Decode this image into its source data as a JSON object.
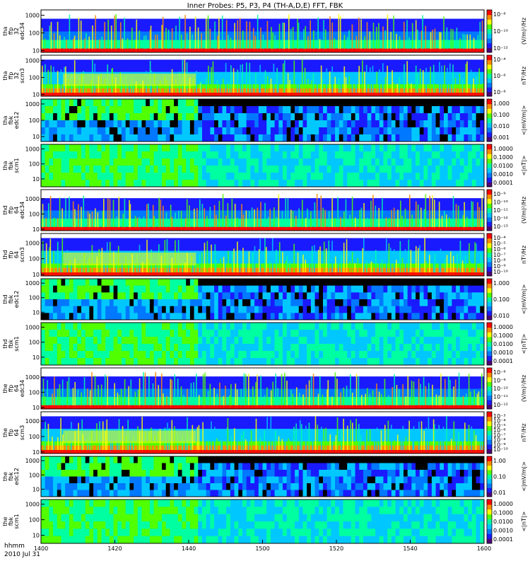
{
  "title": "Inner Probes: P5, P3, P4 (TH-A,D,E) FFT, FBK",
  "colors": {
    "spectrogram": [
      "#4b0078",
      "#1a1aff",
      "#0078ff",
      "#00c8ff",
      "#00ffa0",
      "#50ff00",
      "#ffff00",
      "#ff8c00",
      "#ff0000"
    ],
    "data_gap": "#000000"
  },
  "chart_data": {
    "type": "heatmap",
    "xlabel": "hhmm",
    "date": "2010 Jul 31",
    "x_ticks": [
      "1400",
      "1420",
      "1440",
      "1500",
      "1520",
      "1540",
      "1600"
    ],
    "xlim": [
      "14:00",
      "16:00"
    ],
    "panels": [
      {
        "id": "tha-ffp-32-edc34",
        "ylabel": [
          "tha",
          "ffp",
          "32",
          "edc34"
        ],
        "yscale": "log",
        "ylim": [
          8,
          2000
        ],
        "y_ticks": [
          "1000",
          "100",
          "10"
        ],
        "cb_ticks": [
          "10⁻⁸",
          "10⁻¹⁰",
          "10⁻¹²"
        ],
        "cb_unit": "(V/m)²/Hz"
      },
      {
        "id": "tha-ffp-32-scm3",
        "ylabel": [
          "tha",
          "ffp",
          "32",
          "scm3"
        ],
        "yscale": "log",
        "ylim": [
          8,
          2000
        ],
        "y_ticks": [
          "1000",
          "100",
          "10"
        ],
        "cb_ticks": [
          "10⁻⁴",
          "10⁻⁶",
          "10⁻⁸"
        ],
        "cb_unit": "nT²/Hz"
      },
      {
        "id": "tha-fbk-edc12",
        "ylabel": [
          "tha",
          "fbk",
          "edc12"
        ],
        "yscale": "log",
        "ylim": [
          5,
          2000
        ],
        "y_ticks": [
          "1000",
          "100",
          "10"
        ],
        "cb_ticks": [
          "1.000",
          "0.100",
          "0.010",
          "0.001"
        ],
        "cb_unit": "<|mV/m|>"
      },
      {
        "id": "tha-fbk-scm1",
        "ylabel": [
          "tha",
          "fbk",
          "scm1"
        ],
        "yscale": "log",
        "ylim": [
          3,
          2000
        ],
        "y_ticks": [
          "1000",
          "100",
          "10"
        ],
        "cb_ticks": [
          "1.0000",
          "0.1000",
          "0.0100",
          "0.0010",
          "0.0001"
        ],
        "cb_unit": "<|nT|>"
      },
      {
        "id": "thd-ffp-64-edc34",
        "ylabel": [
          "thd",
          "ffp",
          "64",
          "edc34"
        ],
        "yscale": "log",
        "ylim": [
          8,
          4000
        ],
        "y_ticks": [
          "1000",
          "100",
          "10"
        ],
        "cb_ticks": [
          "10⁻⁹",
          "10⁻¹⁰",
          "10⁻¹¹",
          "10⁻¹²",
          "10⁻¹³"
        ],
        "cb_unit": "(V/m)²/Hz"
      },
      {
        "id": "thd-ffp-64-scm3",
        "ylabel": [
          "thd",
          "ffp",
          "64",
          "scm3"
        ],
        "yscale": "log",
        "ylim": [
          8,
          4000
        ],
        "y_ticks": [
          "1000",
          "100",
          "10"
        ],
        "cb_ticks": [
          "10⁻⁴",
          "10⁻⁵",
          "10⁻⁶",
          "10⁻⁷",
          "10⁻⁸",
          "10⁻⁹",
          "10⁻¹⁰"
        ],
        "cb_unit": "nT²/Hz"
      },
      {
        "id": "thd-fbk-edc12",
        "ylabel": [
          "thd",
          "fbk",
          "edc12"
        ],
        "yscale": "log",
        "ylim": [
          3,
          2000
        ],
        "y_ticks": [
          "1000",
          "100",
          "10"
        ],
        "cb_ticks": [
          "1.000",
          "0.100",
          "0.010"
        ],
        "cb_unit": "<|mV/m|>"
      },
      {
        "id": "thd-fbk-scm1",
        "ylabel": [
          "thd",
          "fbk",
          "scm1"
        ],
        "yscale": "log",
        "ylim": [
          3,
          2000
        ],
        "y_ticks": [
          "1000",
          "100",
          "10"
        ],
        "cb_ticks": [
          "1.0000",
          "0.1000",
          "0.0100",
          "0.0010",
          "0.0001"
        ],
        "cb_unit": "<|nT|>"
      },
      {
        "id": "the-ffp-64-edc34",
        "ylabel": [
          "the",
          "ffp",
          "64",
          "edc34"
        ],
        "yscale": "log",
        "ylim": [
          8,
          4000
        ],
        "y_ticks": [
          "1000",
          "100",
          "10"
        ],
        "cb_ticks": [
          "10⁻⁸",
          "10⁻⁹",
          "10⁻¹⁰",
          "10⁻¹¹",
          "10⁻¹²"
        ],
        "cb_unit": "(V/m)²/Hz"
      },
      {
        "id": "the-ffp-64-scm3",
        "ylabel": [
          "the",
          "ffp",
          "64",
          "scm3"
        ],
        "yscale": "log",
        "ylim": [
          8,
          4000
        ],
        "y_ticks": [
          "1000",
          "100",
          "10"
        ],
        "cb_ticks": [
          "10⁻³",
          "10⁻⁴",
          "10⁻⁵",
          "10⁻⁶",
          "10⁻⁷",
          "10⁻⁸",
          "10⁻⁹",
          "10⁻¹⁰"
        ],
        "cb_unit": "nT²/Hz"
      },
      {
        "id": "the-fbk-edc12",
        "ylabel": [
          "the",
          "fbk",
          "edc12"
        ],
        "yscale": "log",
        "ylim": [
          3,
          2000
        ],
        "y_ticks": [
          "1000",
          "100",
          "10"
        ],
        "cb_ticks": [
          "1.00",
          "0.10",
          "0.01"
        ],
        "cb_unit": "<|mV/m|>"
      },
      {
        "id": "the-fbk-scm1",
        "ylabel": [
          "the",
          "fbk",
          "scm1"
        ],
        "yscale": "log",
        "ylim": [
          3,
          2000
        ],
        "y_ticks": [
          "1000",
          "100",
          "10"
        ],
        "cb_ticks": [
          "1.0000",
          "0.1000",
          "0.0100",
          "0.0010",
          "0.0001"
        ],
        "cb_unit": "<|nT|>"
      }
    ]
  }
}
